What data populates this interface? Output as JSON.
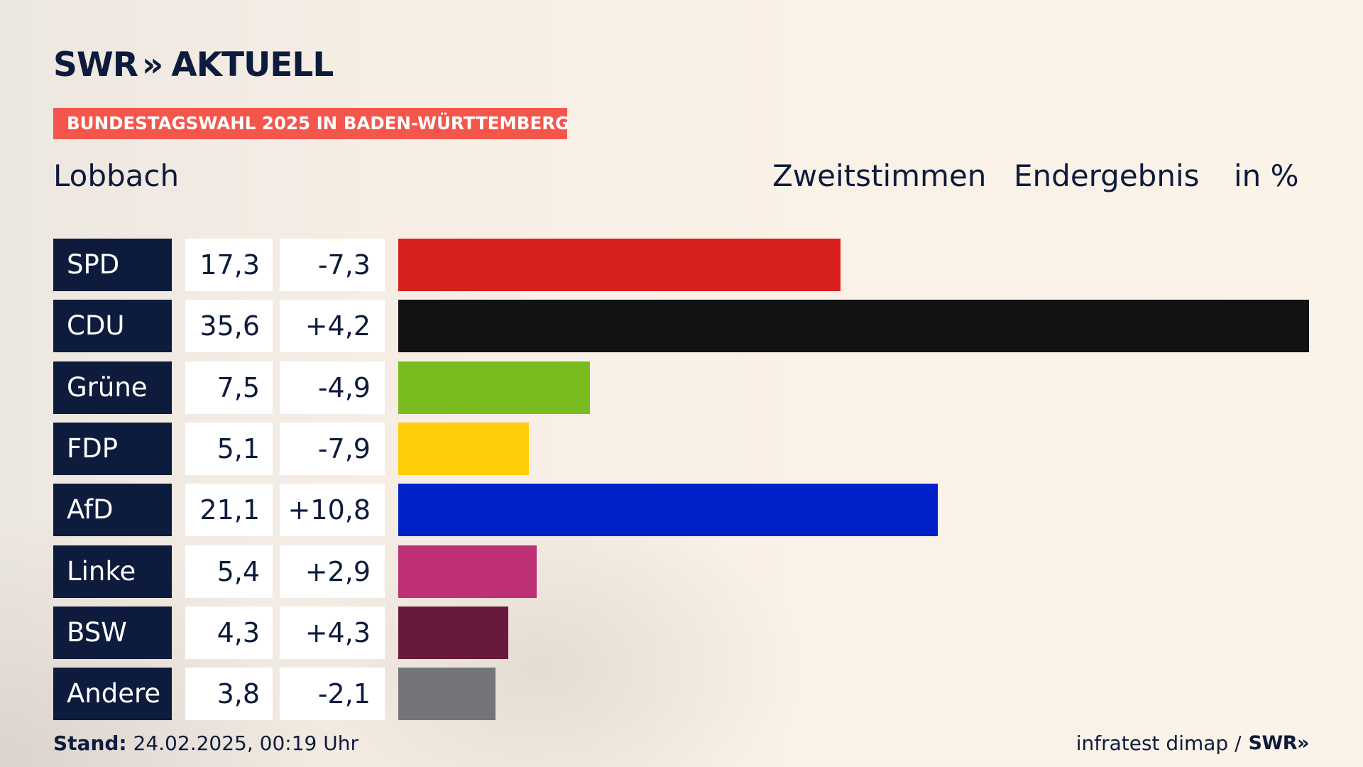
{
  "brand": {
    "swr": "SWR",
    "chevrons": "»",
    "aktuell": "AKTUELL"
  },
  "kicker": "BUNDESTAGSWAHL 2025 IN BADEN-WÜRTTEMBERG",
  "place": "Lobbach",
  "headers": {
    "vote_type": "Zweitstimmen",
    "status": "Endergebnis",
    "unit": "in %"
  },
  "chart_data": {
    "type": "bar",
    "orientation": "horizontal",
    "categories": [
      "SPD",
      "CDU",
      "Grüne",
      "FDP",
      "AfD",
      "Linke",
      "BSW",
      "Andere"
    ],
    "values": [
      17.3,
      35.6,
      7.5,
      5.1,
      21.1,
      5.4,
      4.3,
      3.8
    ],
    "value_labels": [
      "17,3",
      "35,6",
      "7,5",
      "5,1",
      "21,1",
      "5,4",
      "4,3",
      "3,8"
    ],
    "changes": [
      -7.3,
      4.2,
      -4.9,
      -7.9,
      10.8,
      2.9,
      4.3,
      -2.1
    ],
    "change_labels": [
      "-7,3",
      "+4,2",
      "-4,9",
      "-7,9",
      "+10,8",
      "+2,9",
      "+4,3",
      "-2,1"
    ],
    "colors": [
      "#d7201f",
      "#121212",
      "#79bc1f",
      "#ffcc08",
      "#0021c8",
      "#bd3075",
      "#691a3c",
      "#747578"
    ],
    "title": "",
    "xlabel": "",
    "ylabel": "",
    "grid": false,
    "legend": "none"
  },
  "footer": {
    "stand_label": "Stand:",
    "stand_value": "24.02.2025, 00:19 Uhr",
    "source": "infratest dimap /",
    "source_brand": "SWR»"
  }
}
